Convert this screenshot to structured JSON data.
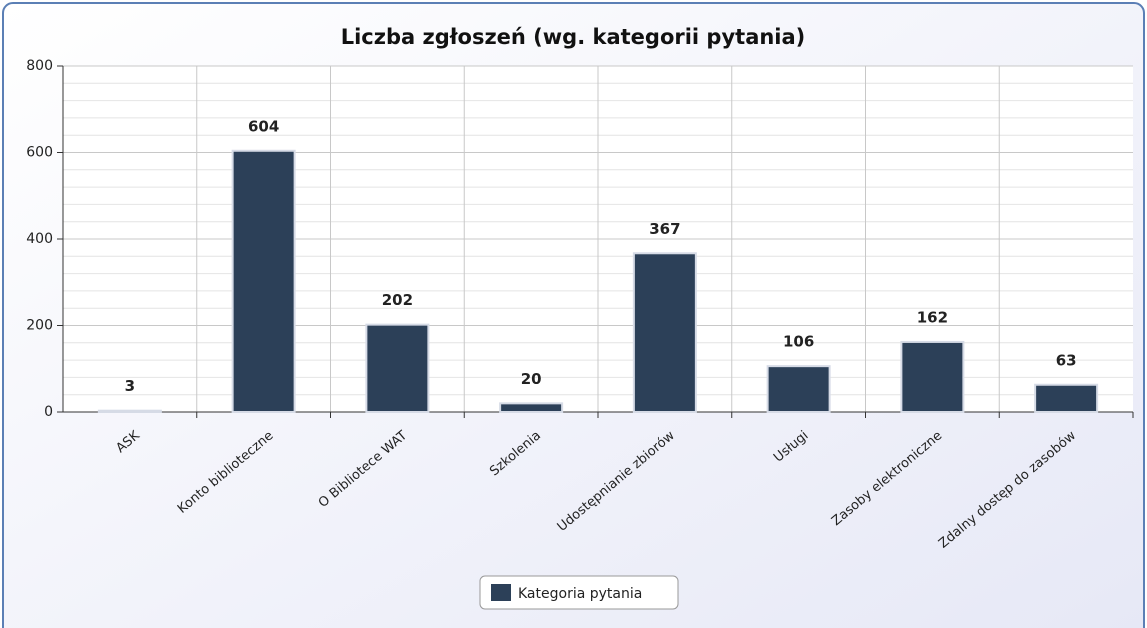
{
  "chart_data": {
    "type": "bar",
    "title": "Liczba zgłoszeń (wg. kategorii pytania)",
    "categories": [
      "ASK",
      "Konto biblioteczne",
      "O Bibliotece WAT",
      "Szkolenia",
      "Udostępnianie zbiorów",
      "Usługi",
      "Zasoby elektroniczne",
      "Zdalny dostęp do zasobów"
    ],
    "series": [
      {
        "name": "Kategoria pytania",
        "color": "#2c4058",
        "values": [
          3,
          604,
          202,
          20,
          367,
          106,
          162,
          63
        ]
      }
    ],
    "ylim": [
      0,
      800
    ],
    "yticks": [
      0,
      200,
      400,
      600,
      800
    ],
    "minor_yticks": [
      40,
      80,
      120,
      160,
      240,
      280,
      320,
      360,
      440,
      480,
      520,
      560,
      640,
      680,
      720,
      760
    ],
    "grid": true,
    "legend": "bottom"
  }
}
